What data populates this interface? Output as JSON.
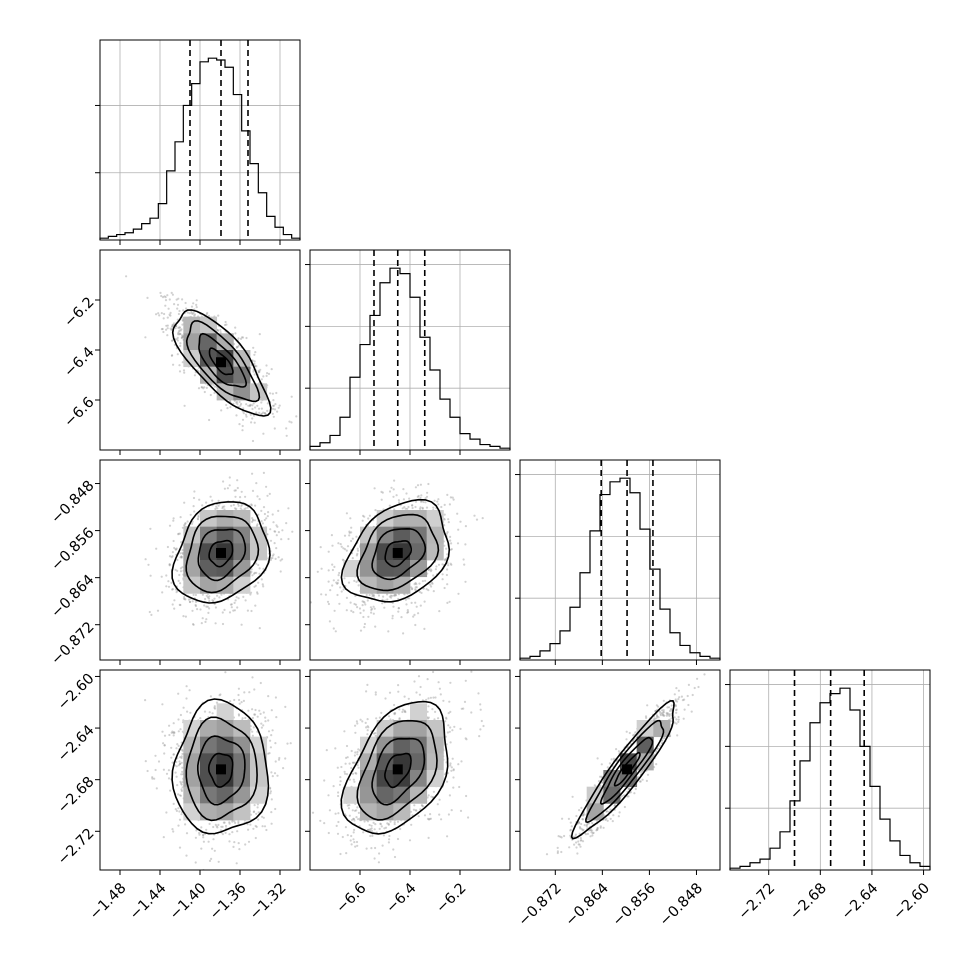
{
  "chart_data": {
    "type": "corner",
    "grid": true,
    "parameters": [
      {
        "index": 0,
        "range": [
          -1.5,
          -1.3
        ],
        "ticks": [
          -1.48,
          -1.44,
          -1.4,
          -1.36,
          -1.32
        ],
        "tick_labels": [
          "−1.48",
          "−1.44",
          "−1.40",
          "−1.36",
          "−1.32"
        ],
        "hist_counts": [
          1,
          2,
          3,
          4,
          6,
          9,
          12,
          20,
          38,
          54,
          74,
          86,
          98,
          100,
          99,
          95,
          80,
          60,
          42,
          26,
          13,
          7,
          3,
          1
        ],
        "quantiles": [
          -1.41,
          -1.379,
          -1.352
        ],
        "hist_yticks": [
          0.37,
          0.74
        ]
      },
      {
        "index": 1,
        "range": [
          -6.8,
          -6.0
        ],
        "ticks": [
          -6.6,
          -6.4,
          -6.2
        ],
        "tick_labels": [
          "−6.6",
          "−6.4",
          "−6.2"
        ],
        "hist_counts": [
          2,
          4,
          8,
          18,
          40,
          58,
          74,
          92,
          100,
          97,
          84,
          62,
          44,
          28,
          18,
          9,
          6,
          3,
          2,
          1
        ],
        "quantiles": [
          -6.544,
          -6.449,
          -6.341
        ],
        "hist_yticks": [
          0.34,
          0.68,
          1.02
        ]
      },
      {
        "index": 2,
        "range": [
          -0.878,
          -0.844
        ],
        "ticks": [
          -0.872,
          -0.864,
          -0.856,
          -0.848
        ],
        "tick_labels": [
          "−0.872",
          "−0.864",
          "−0.856",
          "−0.848"
        ],
        "hist_counts": [
          1,
          2,
          5,
          9,
          16,
          29,
          48,
          71,
          91,
          98,
          100,
          92,
          72,
          50,
          28,
          15,
          8,
          4,
          2,
          1
        ],
        "quantiles": [
          -0.8642,
          -0.8598,
          -0.8554
        ],
        "hist_yticks": [
          0.34,
          0.68,
          1.02
        ]
      },
      {
        "index": 3,
        "range": [
          -2.75,
          -2.595
        ],
        "ticks": [
          -2.72,
          -2.68,
          -2.64,
          -2.6
        ],
        "tick_labels": [
          "−2.72",
          "−2.68",
          "−2.64",
          "−2.60"
        ],
        "hist_counts": [
          1,
          2,
          4,
          6,
          12,
          21,
          38,
          60,
          81,
          92,
          97,
          100,
          88,
          68,
          46,
          28,
          16,
          8,
          4,
          2
        ],
        "quantiles": [
          -2.7,
          -2.672,
          -2.646
        ],
        "hist_yticks": [
          0.34,
          0.68,
          1.02
        ]
      }
    ],
    "pairs": [
      {
        "x": 0,
        "y": 1,
        "mean": [
          -1.379,
          -6.449
        ],
        "sd": [
          0.0235,
          0.104
        ],
        "rho": -0.74
      },
      {
        "x": 0,
        "y": 2,
        "mean": [
          -1.379,
          -0.8598
        ],
        "sd": [
          0.0235,
          0.0043
        ],
        "rho": 0.22
      },
      {
        "x": 1,
        "y": 2,
        "mean": [
          -6.449,
          -0.8598
        ],
        "sd": [
          0.104,
          0.0043
        ],
        "rho": 0.32
      },
      {
        "x": 0,
        "y": 3,
        "mean": [
          -1.379,
          -2.672
        ],
        "sd": [
          0.0235,
          0.0256
        ],
        "rho": 0.02
      },
      {
        "x": 1,
        "y": 3,
        "mean": [
          -6.449,
          -2.672
        ],
        "sd": [
          0.104,
          0.0256
        ],
        "rho": 0.42
      },
      {
        "x": 2,
        "y": 3,
        "mean": [
          -0.8598,
          -2.672
        ],
        "sd": [
          0.0043,
          0.0256
        ],
        "rho": 0.93
      }
    ],
    "contour_levels_sigma": [
      0.5,
      1.0,
      1.5,
      2.0
    ],
    "style": {
      "hist_color": "#000000",
      "scatter_color": "#808080",
      "density_cmap": [
        "#ffffff",
        "#000000"
      ]
    }
  }
}
